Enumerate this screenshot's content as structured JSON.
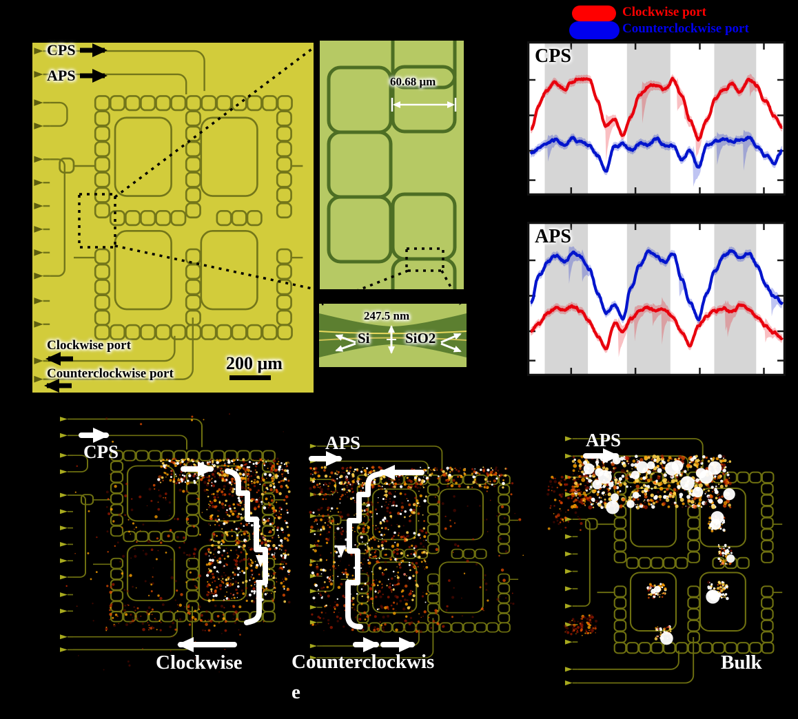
{
  "figure_labels": {
    "panel_a": {
      "cps": "CPS",
      "aps": "APS",
      "clockwise_port": "Clockwise port",
      "counterclockwise_port": "Counterclockwise port",
      "scale_bar": "200 μm"
    },
    "panel_b": {
      "ring_dimension": "60.68 μm"
    },
    "panel_c": {
      "gap_dimension": "247.5 nm",
      "material_left": "Si",
      "material_right": "SiO2"
    },
    "legend": {
      "clockwise": {
        "label": "Clockwise port",
        "color": "#ff0000"
      },
      "counterclockwise": {
        "label": "Counterclockwise port",
        "color": "#0000ee"
      }
    },
    "plot_cps_title": "CPS",
    "plot_aps_title": "APS",
    "bottom": {
      "p1_input": "CPS",
      "p1_mode": "Clockwise",
      "p2_input": "APS",
      "p2_mode_line1": "Counterclockwis",
      "p2_mode_line2": "e",
      "p3_input": "APS",
      "p3_mode": "Bulk"
    }
  },
  "colors": {
    "chip_bg": "#d2cc3b",
    "chip_trace": "#73761a",
    "zoom_bg": "#b6c964",
    "zoom_ring": "#4d6e24",
    "closeup_bg": "#b2c661",
    "closeup_band": "#5c7f30",
    "dark_trace": "#6e7010",
    "plot_band_gray": "#d6d6d6",
    "curve_red": "#e8000d",
    "curve_blue": "#0014cc"
  },
  "chart_data": [
    {
      "type": "line",
      "title": "CPS",
      "x": "normalized 0–1, 31 evenly spaced samples (no axis tick labels visible)",
      "series": [
        {
          "name": "Counterclockwise port",
          "color": "#0014cc",
          "values": [
            0.26,
            0.29,
            0.33,
            0.35,
            0.32,
            0.36,
            0.34,
            0.31,
            0.24,
            0.13,
            0.3,
            0.32,
            0.28,
            0.33,
            0.32,
            0.35,
            0.31,
            0.3,
            0.22,
            0.27,
            0.16,
            0.31,
            0.34,
            0.36,
            0.33,
            0.36,
            0.37,
            0.31,
            0.25,
            0.19,
            0.28
          ]
        },
        {
          "name": "Clockwise port",
          "color": "#e8000d",
          "values": [
            0.42,
            0.6,
            0.7,
            0.74,
            0.7,
            0.76,
            0.79,
            0.77,
            0.62,
            0.45,
            0.5,
            0.38,
            0.52,
            0.66,
            0.72,
            0.74,
            0.7,
            0.77,
            0.66,
            0.48,
            0.36,
            0.5,
            0.63,
            0.7,
            0.74,
            0.68,
            0.77,
            0.73,
            0.62,
            0.52,
            0.44
          ]
        }
      ],
      "shaded_bands_x": [
        [
          0.068,
          0.235
        ],
        [
          0.386,
          0.554
        ],
        [
          0.724,
          0.886
        ]
      ],
      "x_ticks_normalized": [
        0.17,
        0.419,
        0.668,
        0.916
      ],
      "y_ticks_normalized": [
        0.25,
        0.48,
        0.71,
        0.9
      ],
      "axis_tick_labels_visible": false,
      "legend_position": "above figure, shared"
    },
    {
      "type": "line",
      "title": "APS",
      "x": "normalized 0–1, 31 evenly spaced samples (no axis tick labels visible)",
      "series": [
        {
          "name": "Clockwise port",
          "color": "#e8000d",
          "values": [
            0.28,
            0.33,
            0.4,
            0.43,
            0.41,
            0.45,
            0.42,
            0.34,
            0.24,
            0.16,
            0.33,
            0.28,
            0.36,
            0.42,
            0.44,
            0.41,
            0.43,
            0.38,
            0.28,
            0.18,
            0.31,
            0.38,
            0.42,
            0.44,
            0.41,
            0.45,
            0.42,
            0.36,
            0.3,
            0.26,
            0.23
          ]
        },
        {
          "name": "Counterclockwise port",
          "color": "#0014cc",
          "values": [
            0.48,
            0.66,
            0.76,
            0.8,
            0.76,
            0.82,
            0.79,
            0.7,
            0.54,
            0.4,
            0.46,
            0.36,
            0.58,
            0.74,
            0.83,
            0.79,
            0.76,
            0.82,
            0.64,
            0.48,
            0.36,
            0.54,
            0.7,
            0.8,
            0.83,
            0.78,
            0.82,
            0.74,
            0.6,
            0.52,
            0.48
          ]
        }
      ],
      "shaded_bands_x": [
        [
          0.068,
          0.235
        ],
        [
          0.386,
          0.554
        ],
        [
          0.724,
          0.886
        ]
      ],
      "x_ticks_normalized": [
        0.17,
        0.419,
        0.668,
        0.916
      ],
      "y_ticks_normalized": [
        0.25,
        0.48,
        0.71,
        0.9
      ],
      "axis_tick_labels_visible": false,
      "legend_position": "above figure, shared"
    }
  ]
}
